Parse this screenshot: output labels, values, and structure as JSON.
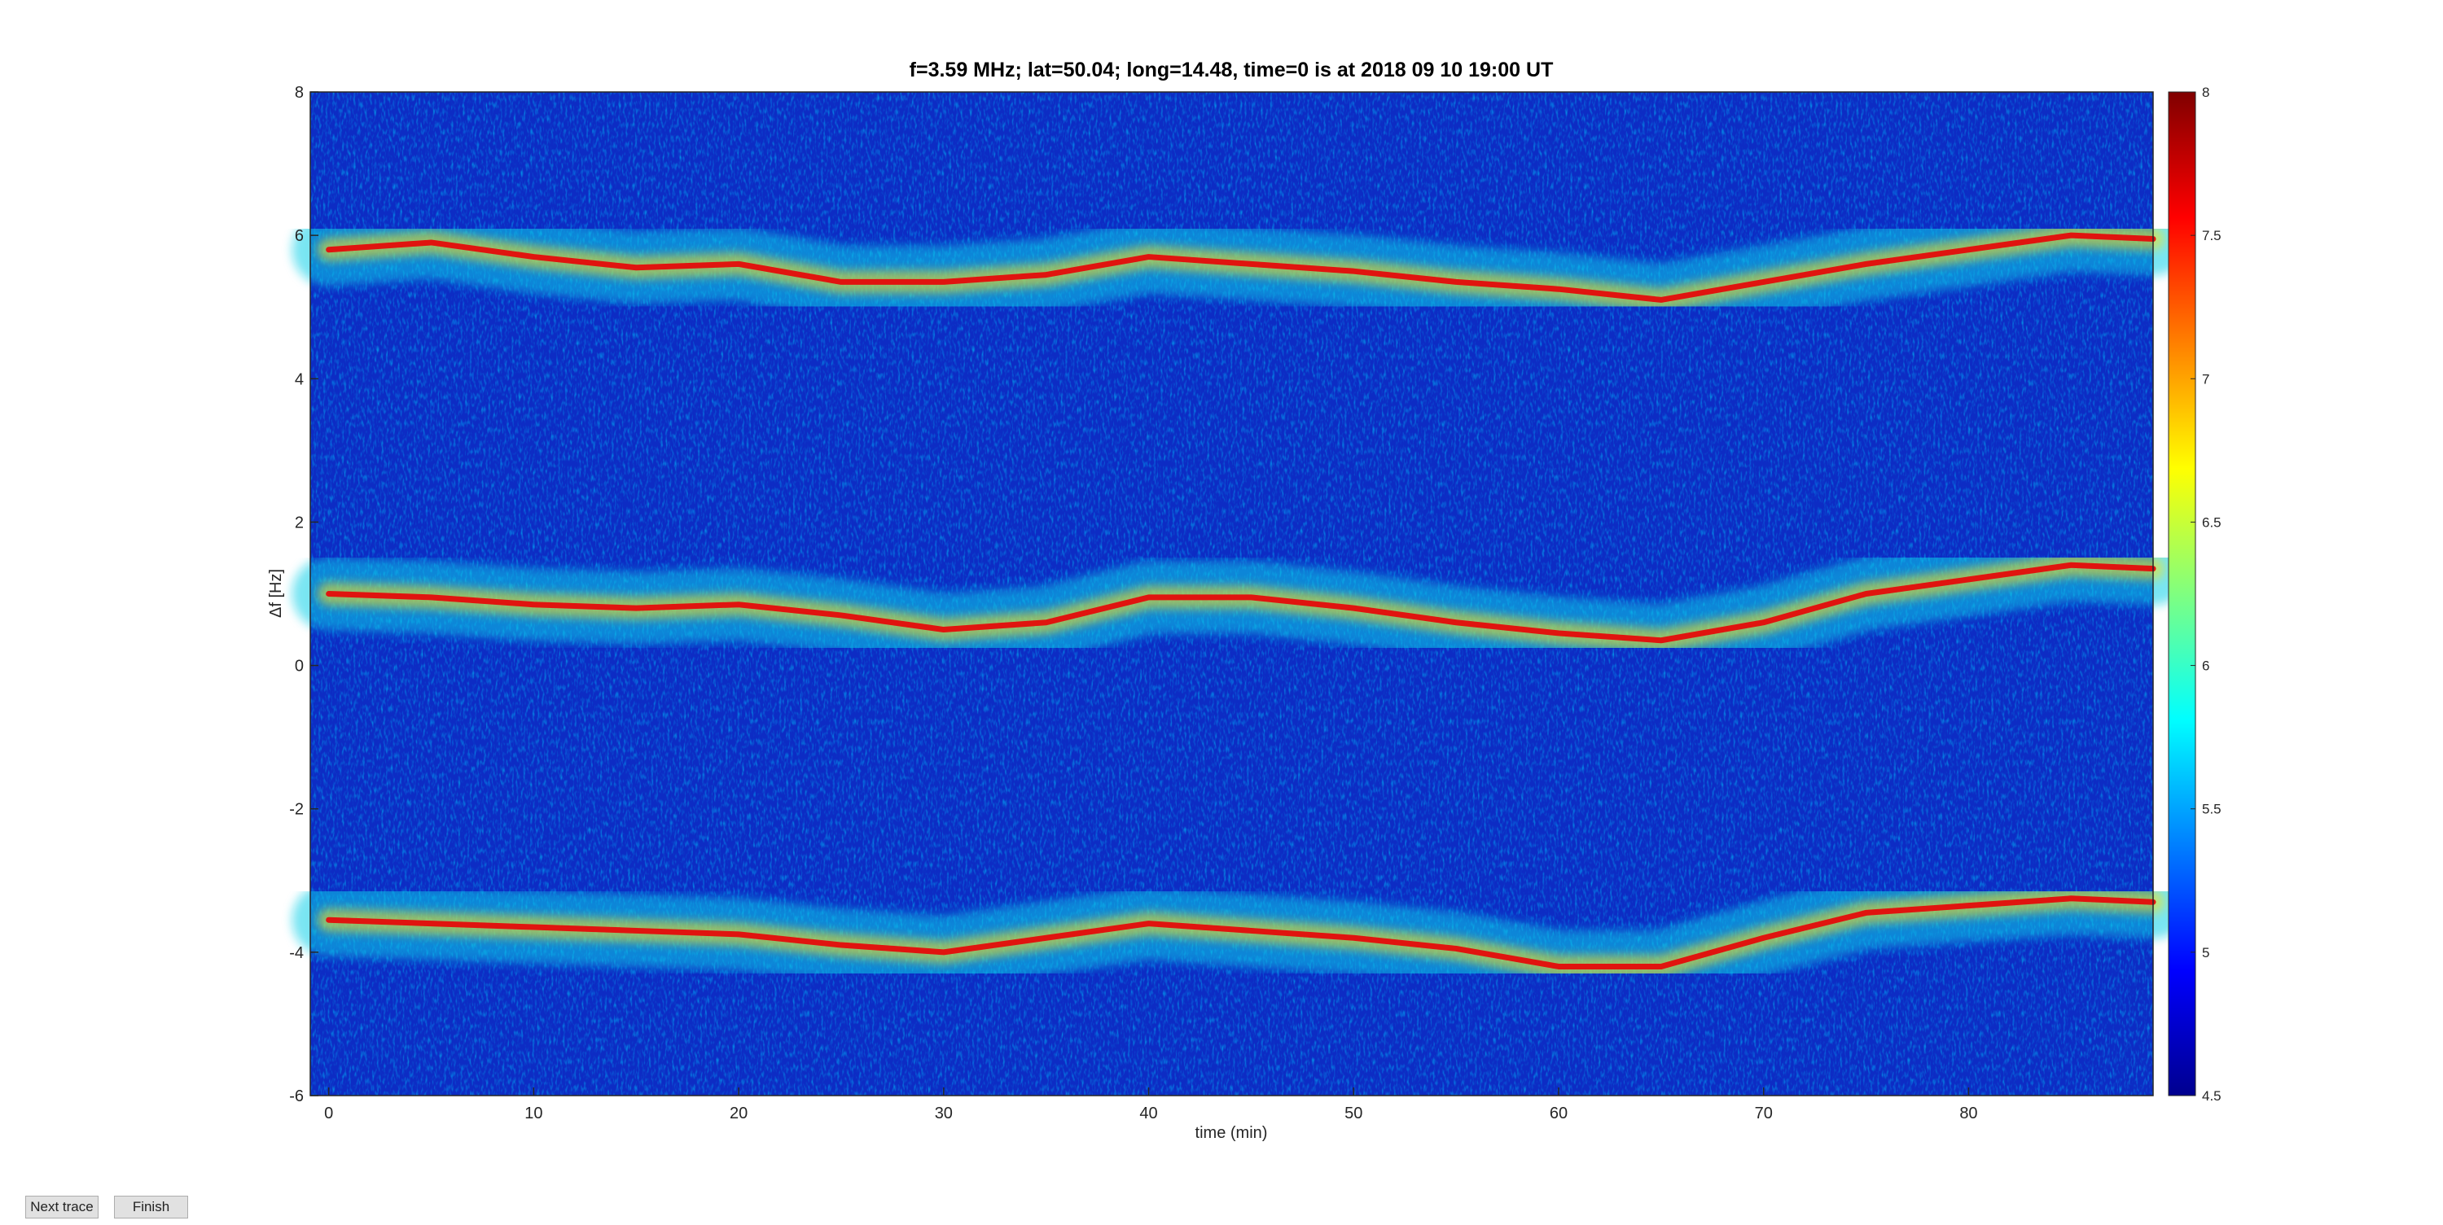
{
  "chart_data": {
    "type": "spectrogram",
    "title": "f=3.59 MHz;  lat=50.04; long=14.48, time=0 is at 2018 09 10 19:00 UT",
    "xlabel": "time (min)",
    "ylabel": "Δf [Hz]",
    "xlim": [
      -0.9,
      89
    ],
    "xticks": [
      0,
      10,
      20,
      30,
      40,
      50,
      60,
      70,
      80
    ],
    "ylim": [
      -6,
      8
    ],
    "yticks": [
      -6,
      -4,
      -2,
      0,
      2,
      4,
      6,
      8
    ],
    "clim": [
      4.5,
      8
    ],
    "cticks": [
      4.5,
      5,
      5.5,
      6,
      6.5,
      7,
      7.5,
      8
    ],
    "x": [
      0,
      5,
      10,
      15,
      20,
      25,
      30,
      35,
      40,
      45,
      50,
      55,
      60,
      65,
      70,
      75,
      80,
      85,
      89
    ],
    "series": [
      {
        "color": "#e0140f",
        "values": [
          5.8,
          5.9,
          5.7,
          5.55,
          5.6,
          5.35,
          5.35,
          5.45,
          5.7,
          5.6,
          5.5,
          5.35,
          5.25,
          5.1,
          5.35,
          5.6,
          5.8,
          6.0,
          5.95
        ]
      },
      {
        "color": "#e0140f",
        "values": [
          1.0,
          0.95,
          0.85,
          0.8,
          0.85,
          0.7,
          0.5,
          0.6,
          0.95,
          0.95,
          0.8,
          0.6,
          0.45,
          0.35,
          0.6,
          1.0,
          1.2,
          1.4,
          1.35
        ]
      },
      {
        "color": "#e0140f",
        "values": [
          -3.55,
          -3.6,
          -3.65,
          -3.7,
          -3.75,
          -3.9,
          -4.0,
          -3.8,
          -3.6,
          -3.7,
          -3.8,
          -3.95,
          -4.2,
          -4.2,
          -3.8,
          -3.45,
          -3.35,
          -3.25,
          -3.3
        ]
      }
    ]
  },
  "controls": {
    "buttons": [
      "Next trace",
      "Finish"
    ]
  }
}
